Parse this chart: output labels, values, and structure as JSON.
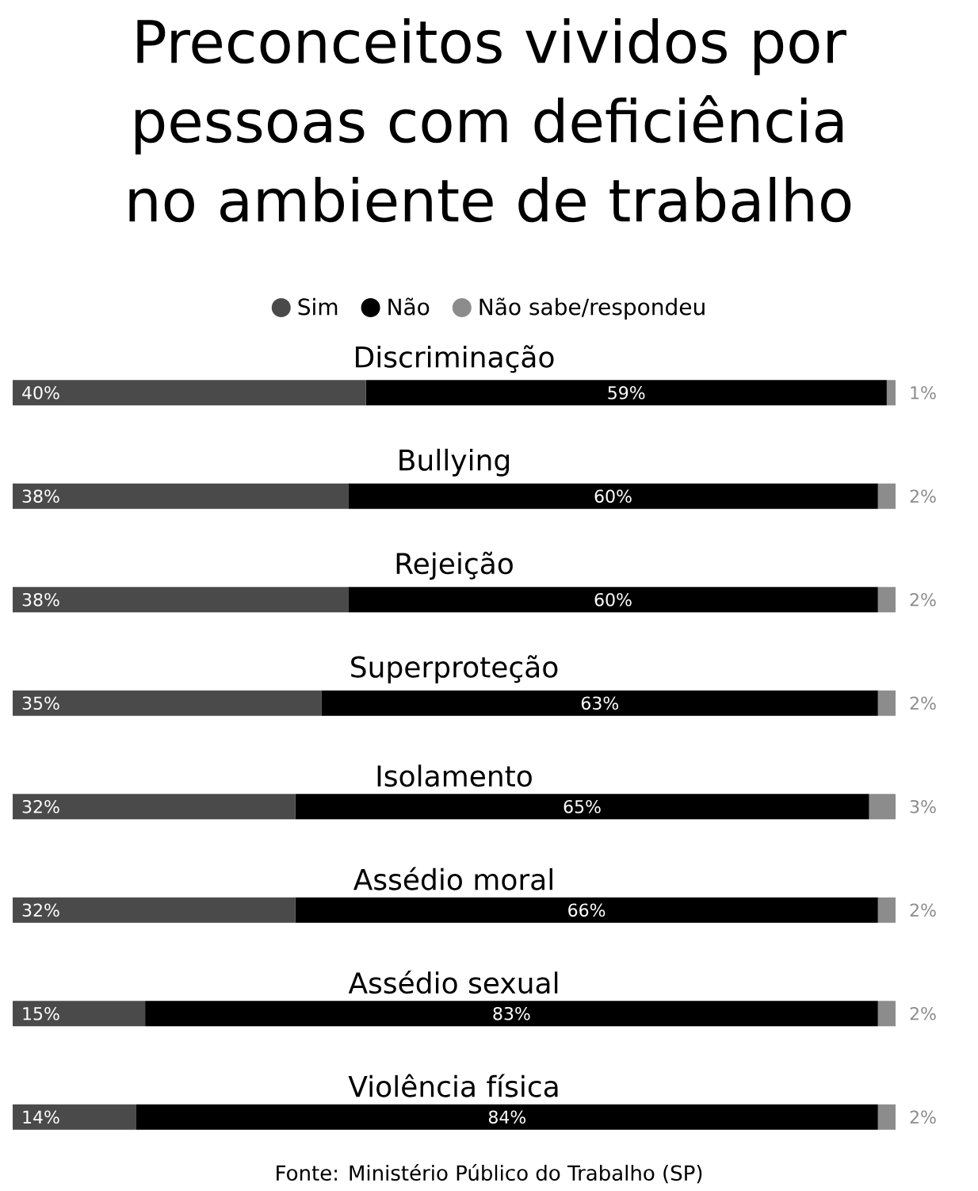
{
  "chart_data": {
    "type": "bar",
    "orientation": "horizontal",
    "stacked": true,
    "title": "Preconceitos vividos por pessoas com deficiência no ambiente de trabalho",
    "categories": [
      "Discriminação",
      "Bullying",
      "Rejeição",
      "Superproteção",
      "Isolamento",
      "Assédio moral",
      "Assédio sexual",
      "Violência física"
    ],
    "series": [
      {
        "name": "Sim",
        "color": "#4a4a4a",
        "values": [
          40,
          38,
          38,
          35,
          32,
          32,
          15,
          14
        ],
        "value_labels": [
          "40%",
          "38%",
          "38%",
          "35%",
          "32%",
          "32%",
          "15%",
          "14%"
        ]
      },
      {
        "name": "Não",
        "color": "#000000",
        "values": [
          59,
          60,
          60,
          63,
          65,
          66,
          83,
          84
        ],
        "value_labels": [
          "59%",
          "60%",
          "60%",
          "63%",
          "65%",
          "66%",
          "83%",
          "84%"
        ]
      },
      {
        "name": "Não sabe/respondeu",
        "color": "#8c8c8c",
        "values": [
          1,
          2,
          2,
          2,
          3,
          2,
          2,
          2
        ],
        "value_labels": [
          "1%",
          "2%",
          "2%",
          "2%",
          "3%",
          "2%",
          "2%",
          "2%"
        ]
      }
    ],
    "xlim": [
      0,
      100
    ],
    "tick_labels": false,
    "legend": "top",
    "annotations": [
      "Fonte: Ministério Público do Trabalho (SP)"
    ]
  }
}
